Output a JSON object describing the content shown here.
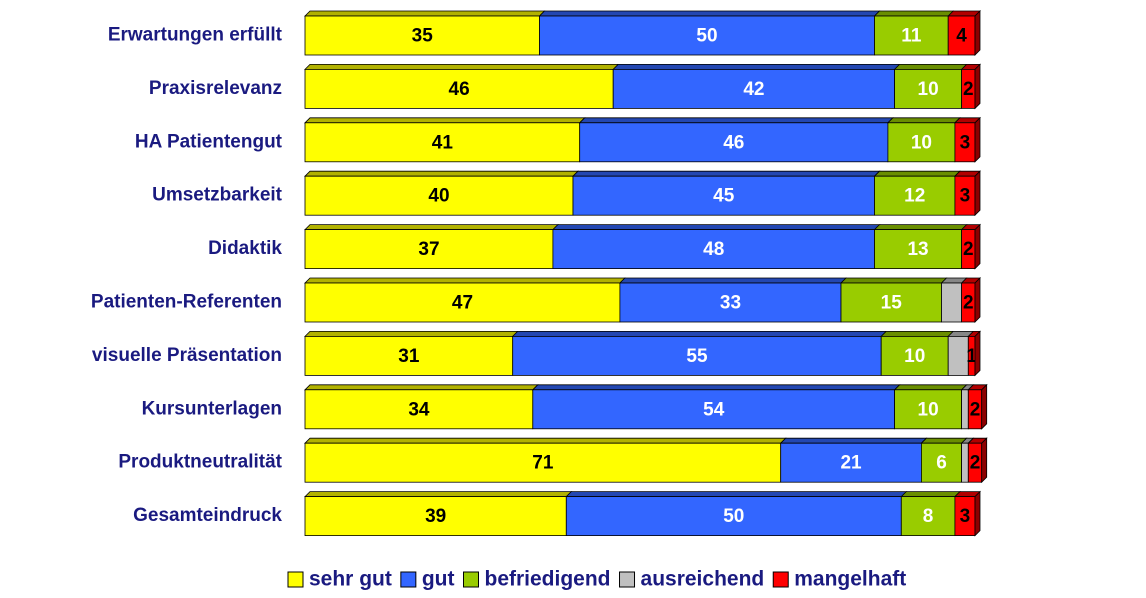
{
  "chart_data": {
    "type": "stacked-barh",
    "categories": [
      "Erwartungen erfüllt",
      "Praxisrelevanz",
      "HA Patientengut",
      "Umsetzbarkeit",
      "Didaktik",
      "Patienten-Referenten",
      "visuelle Präsentation",
      "Kursunterlagen",
      "Produktneutralität",
      "Gesamteindruck"
    ],
    "series": [
      {
        "name": "sehr gut",
        "color": "#ffff00",
        "label_color": "#000000",
        "labels": true,
        "values": [
          35,
          46,
          41,
          40,
          37,
          47,
          31,
          34,
          71,
          39
        ]
      },
      {
        "name": "gut",
        "color": "#3366ff",
        "label_color": "#ffffff",
        "labels": true,
        "values": [
          50,
          42,
          46,
          45,
          48,
          33,
          55,
          54,
          21,
          50
        ]
      },
      {
        "name": "befriedigend",
        "color": "#99cc00",
        "label_color": "#ffffff",
        "labels": true,
        "values": [
          11,
          10,
          10,
          12,
          13,
          15,
          10,
          10,
          6,
          8
        ]
      },
      {
        "name": "ausreichend",
        "color": "#c0c0c0",
        "label_color": "#000000",
        "labels": false,
        "values": [
          0,
          0,
          0,
          0,
          0,
          3,
          3,
          1,
          1,
          0
        ]
      },
      {
        "name": "mangelhaft",
        "color": "#ff0000",
        "label_color": "#000000",
        "labels": true,
        "values": [
          4,
          2,
          3,
          3,
          2,
          2,
          1,
          2,
          2,
          3
        ]
      }
    ],
    "xlim": [
      0,
      100
    ]
  }
}
